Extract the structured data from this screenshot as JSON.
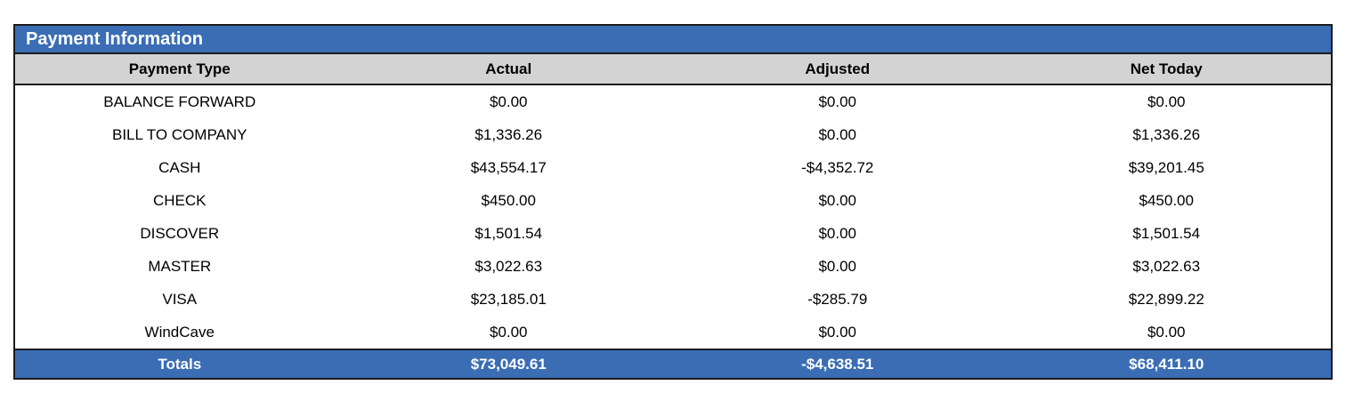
{
  "title": "Payment Information",
  "columns": {
    "payment_type": "Payment Type",
    "actual": "Actual",
    "adjusted": "Adjusted",
    "net_today": "Net Today"
  },
  "rows": [
    {
      "type": "BALANCE FORWARD",
      "actual": "$0.00",
      "adjusted": "$0.00",
      "net": "$0.00"
    },
    {
      "type": "BILL TO COMPANY",
      "actual": "$1,336.26",
      "adjusted": "$0.00",
      "net": "$1,336.26"
    },
    {
      "type": "CASH",
      "actual": "$43,554.17",
      "adjusted": "-$4,352.72",
      "net": "$39,201.45"
    },
    {
      "type": "CHECK",
      "actual": "$450.00",
      "adjusted": "$0.00",
      "net": "$450.00"
    },
    {
      "type": "DISCOVER",
      "actual": "$1,501.54",
      "adjusted": "$0.00",
      "net": "$1,501.54"
    },
    {
      "type": "MASTER",
      "actual": "$3,022.63",
      "adjusted": "$0.00",
      "net": "$3,022.63"
    },
    {
      "type": "VISA",
      "actual": "$23,185.01",
      "adjusted": "-$285.79",
      "net": "$22,899.22"
    },
    {
      "type": "WindCave",
      "actual": "$0.00",
      "adjusted": "$0.00",
      "net": "$0.00"
    }
  ],
  "totals": {
    "label": "Totals",
    "actual": "$73,049.61",
    "adjusted": "-$4,638.51",
    "net": "$68,411.10"
  },
  "colors": {
    "accent_blue": "#3A6DB4",
    "header_gray": "#D3D3D3"
  }
}
